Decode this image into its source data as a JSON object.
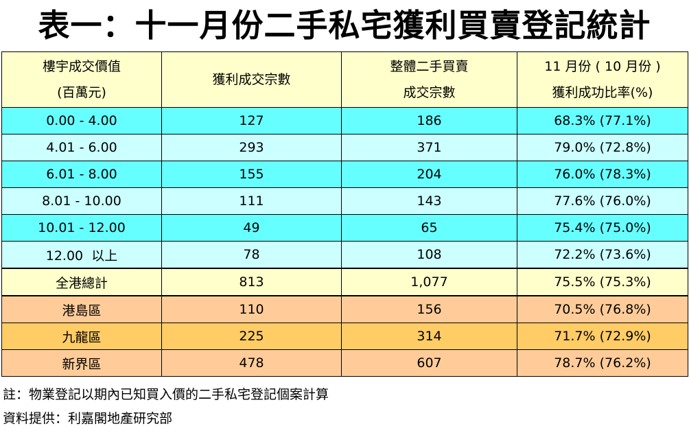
{
  "title": "表一：十一月份二手私宅獲利買賣登記統計",
  "table": {
    "headers": {
      "col1_line1": "樓宇成交價值",
      "col1_line2": "(百萬元)",
      "col2": "獲利成交宗數",
      "col3_line1": "整體二手買賣",
      "col3_line2": "成交宗數",
      "col4_line1": "11 月份 ( 10 月份 )",
      "col4_line2": "獲利成功比率(%)"
    },
    "rows": [
      {
        "range": "0.00 - 4.00",
        "profit": "127",
        "total": "186",
        "ratio": "68.3% (77.1%)"
      },
      {
        "range": "4.01 - 6.00",
        "profit": "293",
        "total": "371",
        "ratio": "79.0% (72.8%)"
      },
      {
        "range": "6.01 - 8.00",
        "profit": "155",
        "total": "204",
        "ratio": "76.0% (78.3%)"
      },
      {
        "range": "8.01 - 10.00",
        "profit": "111",
        "total": "143",
        "ratio": "77.6% (76.0%)"
      },
      {
        "range": "10.01 - 12.00",
        "profit": "49",
        "total": "65",
        "ratio": "75.4% (75.0%)"
      },
      {
        "range": "12.00  以上",
        "profit": "78",
        "total": "108",
        "ratio": "72.2% (73.6%)"
      },
      {
        "range": "全港總計",
        "profit": "813",
        "total": "1,077",
        "ratio": "75.5% (75.3%)"
      },
      {
        "range": "港島區",
        "profit": "110",
        "total": "156",
        "ratio": "70.5% (76.8%)"
      },
      {
        "range": "九龍區",
        "profit": "225",
        "total": "314",
        "ratio": "71.7% (72.9%)"
      },
      {
        "range": "新界區",
        "profit": "478",
        "total": "607",
        "ratio": "78.7% (76.2%)"
      }
    ]
  },
  "colors": {
    "header_bg": "#ffffcc",
    "cyan_row": "#66ffff",
    "light_cyan_row": "#ccffff",
    "total_row": "#ffffcc",
    "peach_row": "#ffcc99",
    "orange_row": "#ffcc66"
  },
  "notes": {
    "note": "註：物業登記以期內已知買入價的二手私宅登記個案計算",
    "source": "資料提供：利嘉閣地產研究部"
  }
}
